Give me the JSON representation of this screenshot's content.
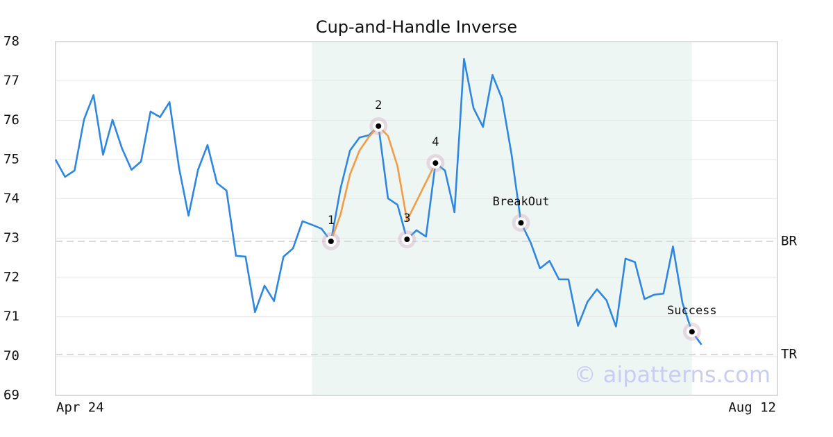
{
  "chart_data": {
    "type": "line",
    "title": "Cup-and-Handle Inverse",
    "watermark": "© aipatterns.com",
    "xlim": [
      0,
      76
    ],
    "xticks": [
      {
        "value": 0,
        "label": "Apr 24"
      },
      {
        "value": 76,
        "label": "Aug 12"
      }
    ],
    "ylim": [
      69,
      78
    ],
    "yticks": [
      69,
      70,
      71,
      72,
      73,
      74,
      75,
      76,
      77,
      78
    ],
    "grid": true,
    "shade": {
      "x": [
        27,
        67
      ],
      "color": "#eef6f3"
    },
    "series": [
      {
        "color": "#2f86e0",
        "x": [
          0,
          1,
          2,
          3,
          4,
          5,
          6,
          7,
          8,
          9,
          10,
          11,
          12,
          13,
          14,
          15,
          16,
          17,
          18,
          19,
          20,
          21,
          22,
          23,
          24,
          25,
          26,
          27,
          28,
          29,
          30,
          31,
          32,
          33,
          34,
          35,
          36,
          37,
          38,
          39,
          40,
          41,
          42,
          43,
          44,
          45,
          46,
          47,
          48,
          49,
          50,
          51,
          52,
          53,
          54,
          55,
          56,
          57,
          58,
          59,
          60,
          61,
          62,
          63,
          64,
          65,
          66,
          67,
          68
        ],
        "values": [
          75.0,
          74.56,
          74.72,
          76.02,
          76.64,
          75.12,
          76.01,
          75.28,
          74.74,
          74.95,
          76.22,
          76.08,
          76.46,
          74.79,
          73.57,
          74.74,
          75.37,
          74.4,
          74.21,
          72.55,
          72.53,
          71.12,
          71.79,
          71.4,
          72.53,
          72.74,
          73.43,
          73.34,
          73.24,
          72.92,
          74.26,
          75.23,
          75.56,
          75.62,
          75.85,
          74.01,
          73.85,
          72.97,
          73.2,
          73.04,
          74.91,
          74.72,
          73.66,
          77.56,
          76.31,
          75.83,
          77.15,
          76.55,
          75.14,
          73.39,
          72.9,
          72.23,
          72.42,
          71.95,
          71.95,
          70.77,
          71.38,
          71.7,
          71.42,
          70.75,
          72.48,
          72.39,
          71.45,
          71.56,
          71.59,
          72.79,
          71.35,
          70.62,
          70.29
        ]
      },
      {
        "color": "#f39c45",
        "x": [
          29,
          30,
          31,
          32,
          33,
          34,
          35,
          36,
          37,
          40
        ],
        "values": [
          72.92,
          73.6,
          74.62,
          75.23,
          75.58,
          75.85,
          75.6,
          74.83,
          73.45,
          74.91
        ]
      }
    ],
    "points": [
      {
        "label": "1",
        "index": 29
      },
      {
        "label": "2",
        "index": 34
      },
      {
        "label": "3",
        "index": 37
      },
      {
        "label": "4",
        "index": 40
      },
      {
        "label": "BreakOut",
        "index": 49
      },
      {
        "label": "Success",
        "index": 67
      }
    ],
    "hlines": [
      {
        "label": "BR",
        "value": 72.92
      },
      {
        "label": "TR",
        "value": 70.04
      }
    ]
  }
}
